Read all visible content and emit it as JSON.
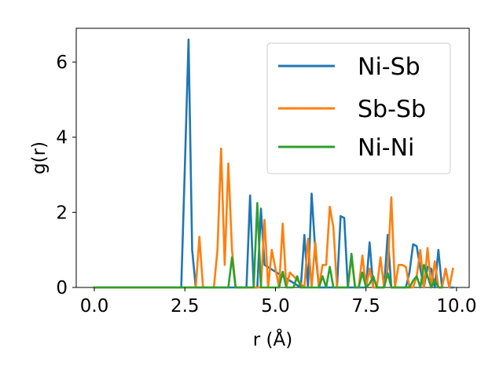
{
  "chart_data": {
    "type": "line",
    "xlabel": "r (Å)",
    "ylabel": "g(r)",
    "xlim": [
      -0.5,
      10.35
    ],
    "ylim": [
      0,
      6.9
    ],
    "xticks": [
      0.0,
      2.5,
      5.0,
      7.5,
      10.0
    ],
    "xtick_labels": [
      "0.0",
      "2.5",
      "5.0",
      "7.5",
      "10.0"
    ],
    "yticks": [
      0,
      2,
      4,
      6
    ],
    "ytick_labels": [
      "0",
      "2",
      "4",
      "6"
    ],
    "grid": false,
    "legend_position": "upper-right",
    "series": [
      {
        "name": "Ni-Sb",
        "color": "#1f77b4",
        "x": [
          0,
          2.4,
          2.5,
          2.6,
          2.7,
          2.8,
          4.2,
          4.3,
          4.4,
          4.5,
          4.6,
          4.7,
          5.7,
          5.8,
          5.9,
          6.0,
          6.1,
          6.2,
          6.3,
          6.7,
          6.8,
          6.9,
          7.0,
          7.1,
          7.5,
          7.6,
          7.7,
          7.8,
          8.0,
          8.1,
          8.2,
          8.3,
          8.6,
          8.7,
          8.8,
          8.9,
          9.0,
          9.1,
          9.2,
          9.3,
          9.4,
          9.5,
          9.6,
          9.7,
          9.8,
          9.9
        ],
        "y": [
          0,
          0,
          3.2,
          6.6,
          1.0,
          0,
          0,
          2.45,
          0,
          0,
          2.1,
          0.6,
          0,
          1.4,
          0,
          2.5,
          1.0,
          0,
          0,
          0,
          1.9,
          1.85,
          0,
          0,
          0,
          1.2,
          0,
          0,
          0,
          1.4,
          0,
          0,
          0,
          0.4,
          1.15,
          1.1,
          0.5,
          0,
          0.55,
          0.5,
          0,
          1.0,
          0,
          0.5,
          0,
          0
        ]
      },
      {
        "name": "Sb-Sb",
        "color": "#ff7f0e",
        "x": [
          0,
          2.8,
          2.9,
          3.0,
          3.3,
          3.4,
          3.5,
          3.6,
          3.7,
          3.8,
          3.9,
          4.0,
          4.6,
          4.7,
          4.8,
          4.9,
          5.1,
          5.2,
          5.3,
          5.4,
          5.8,
          5.9,
          6.0,
          6.1,
          6.2,
          6.3,
          6.4,
          6.5,
          6.6,
          6.7,
          7.0,
          7.1,
          7.2,
          7.3,
          7.4,
          7.5,
          7.6,
          7.7,
          7.8,
          7.9,
          8.0,
          8.1,
          8.2,
          8.3,
          8.4,
          8.5,
          8.6,
          8.7,
          8.8,
          8.9,
          9.0,
          9.1,
          9.2,
          9.3,
          9.4,
          9.5,
          9.6,
          9.7,
          9.8,
          9.9
        ],
        "y": [
          0,
          0,
          1.35,
          0,
          0,
          1.0,
          3.7,
          0.6,
          3.3,
          1.0,
          0,
          0,
          0,
          1.8,
          0,
          1.0,
          0,
          1.7,
          0,
          0.4,
          0,
          1.3,
          0,
          1.2,
          0,
          0.6,
          0.6,
          2.15,
          1.6,
          0,
          0,
          0.8,
          0,
          0,
          0.85,
          0,
          0.5,
          0,
          0,
          0.8,
          0,
          0.5,
          2.4,
          0,
          0.6,
          0.6,
          0.55,
          0,
          0,
          0.3,
          1.0,
          0,
          1.05,
          0,
          0.7,
          0,
          0,
          0.5,
          0,
          0.5
        ]
      },
      {
        "name": "Ni-Ni",
        "color": "#2ca02c",
        "x": [
          0,
          3.7,
          3.8,
          3.9,
          4.4,
          4.5,
          4.6,
          4.7,
          5.1,
          5.2,
          5.3,
          5.5,
          5.6,
          5.7,
          6.2,
          6.3,
          6.4,
          6.5,
          6.6,
          7.0,
          7.1,
          7.2,
          7.3,
          7.4,
          7.5,
          7.6,
          7.7,
          7.8,
          8.0,
          8.1,
          8.2,
          8.3,
          8.7,
          8.8,
          8.9,
          9.0,
          9.1,
          9.2,
          9.3,
          9.4,
          9.5,
          9.6
        ],
        "y": [
          0,
          0,
          0.8,
          0,
          0,
          2.25,
          0,
          0,
          0,
          0.42,
          0,
          0,
          0.3,
          0,
          0,
          0.3,
          0,
          0.55,
          0,
          0,
          0.9,
          0,
          0,
          0.4,
          0,
          0.1,
          0.3,
          0,
          0,
          0.38,
          0,
          0,
          0,
          0.18,
          0.3,
          0,
          0.6,
          0.3,
          0,
          0.2,
          0,
          0
        ]
      }
    ]
  }
}
